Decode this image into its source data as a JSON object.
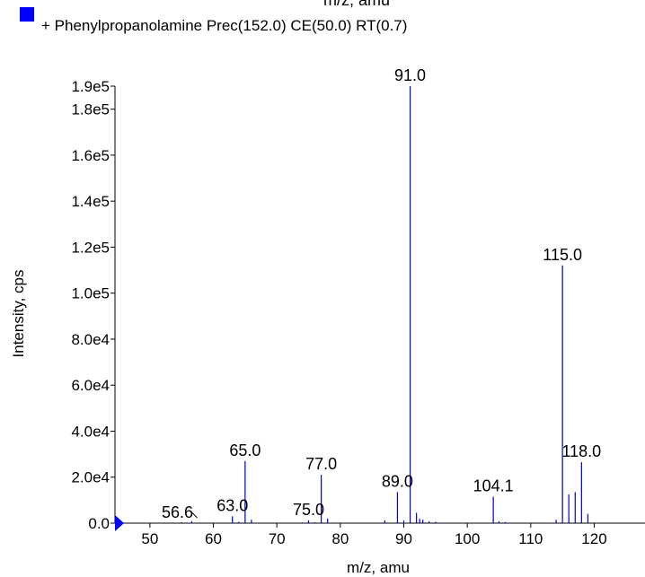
{
  "top_label": "m/z, amu",
  "legend": {
    "text": "+ Phenylpropanolamine Prec(152.0) CE(50.0) RT(0.7)"
  },
  "colors": {
    "series": "#0000cc",
    "legend_swatch": "#0000ff",
    "axis": "#000000"
  },
  "chart_data": {
    "type": "bar",
    "title": "",
    "xlabel": "m/z, amu",
    "ylabel": "Intensity, cps",
    "xlim": [
      44.5,
      128
    ],
    "ylim": [
      0,
      190000
    ],
    "x_ticks": [
      50,
      60,
      70,
      80,
      90,
      100,
      110,
      120
    ],
    "y_ticks": [
      {
        "value": 0,
        "label": "0.0"
      },
      {
        "value": 20000,
        "label": "2.0e4"
      },
      {
        "value": 40000,
        "label": "4.0e4"
      },
      {
        "value": 60000,
        "label": "6.0e4"
      },
      {
        "value": 80000,
        "label": "8.0e4"
      },
      {
        "value": 100000,
        "label": "1.0e5"
      },
      {
        "value": 120000,
        "label": "1.2e5"
      },
      {
        "value": 140000,
        "label": "1.4e5"
      },
      {
        "value": 160000,
        "label": "1.6e5"
      },
      {
        "value": 180000,
        "label": "1.8e5"
      },
      {
        "value": 190000,
        "label": "1.9e5"
      }
    ],
    "series": [
      {
        "points": [
          {
            "x": 55.0,
            "y": 400
          },
          {
            "x": 56.6,
            "y": 900
          },
          {
            "x": 63.0,
            "y": 3000
          },
          {
            "x": 64.0,
            "y": 600
          },
          {
            "x": 65.0,
            "y": 27000
          },
          {
            "x": 66.0,
            "y": 1500
          },
          {
            "x": 74.0,
            "y": 300
          },
          {
            "x": 75.0,
            "y": 1200
          },
          {
            "x": 76.0,
            "y": 400
          },
          {
            "x": 77.0,
            "y": 21000
          },
          {
            "x": 78.0,
            "y": 2000
          },
          {
            "x": 87.0,
            "y": 1200
          },
          {
            "x": 89.0,
            "y": 13500
          },
          {
            "x": 90.0,
            "y": 1200
          },
          {
            "x": 91.0,
            "y": 190000
          },
          {
            "x": 92.0,
            "y": 4500
          },
          {
            "x": 92.5,
            "y": 2000
          },
          {
            "x": 93.0,
            "y": 1500
          },
          {
            "x": 94.0,
            "y": 800
          },
          {
            "x": 95.0,
            "y": 600
          },
          {
            "x": 104.1,
            "y": 11500
          },
          {
            "x": 105.0,
            "y": 800
          },
          {
            "x": 106.0,
            "y": 500
          },
          {
            "x": 114.0,
            "y": 1500
          },
          {
            "x": 115.0,
            "y": 112000
          },
          {
            "x": 116.0,
            "y": 12500
          },
          {
            "x": 117.0,
            "y": 13500
          },
          {
            "x": 118.0,
            "y": 26500
          },
          {
            "x": 119.0,
            "y": 4000
          }
        ]
      }
    ],
    "annotations": [
      {
        "x": 56.6,
        "label": "56.6"
      },
      {
        "x": 63.0,
        "label": "63.0"
      },
      {
        "x": 65.0,
        "label": "65.0"
      },
      {
        "x": 75.0,
        "label": "75.0"
      },
      {
        "x": 77.0,
        "label": "77.0"
      },
      {
        "x": 89.0,
        "label": "89.0"
      },
      {
        "x": 91.0,
        "label": "91.0"
      },
      {
        "x": 104.1,
        "label": "104.1"
      },
      {
        "x": 115.0,
        "label": "115.0"
      },
      {
        "x": 118.0,
        "label": "118.0"
      }
    ]
  }
}
